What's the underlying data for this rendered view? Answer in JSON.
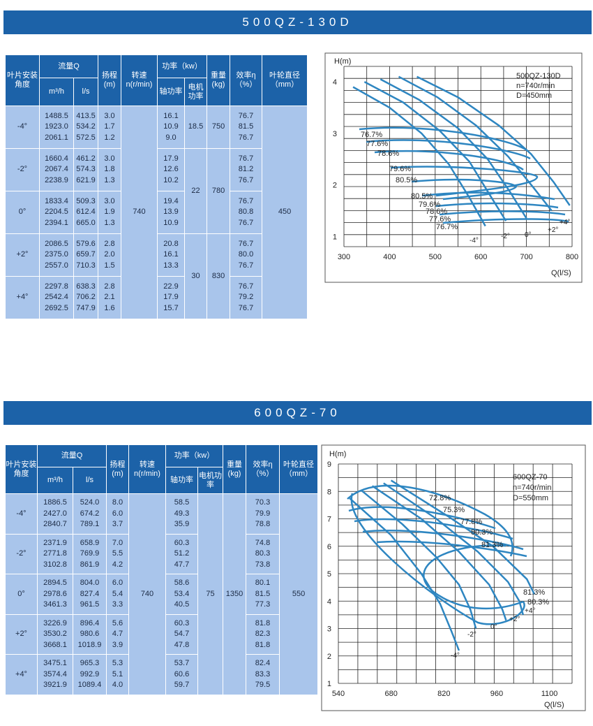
{
  "colors": {
    "banner": "#1c62a8",
    "header": "#1c62a8",
    "cell": "#a9c5eb",
    "curve": "#2e86c1"
  },
  "headers": {
    "angle": "叶片安装角度",
    "flow": "流量Q",
    "flow_m3h": "m³/h",
    "flow_ls": "l/s",
    "head": "扬程",
    "head_unit": "(m)",
    "speed": "转速",
    "speed_unit": "n(r/min)",
    "power": "功率（kw）",
    "shaft_power": "轴功率",
    "motor_power": "电机功率",
    "weight": "重量",
    "weight_unit": "(kg)",
    "eff": "效率η",
    "eff_unit": "（%）",
    "impeller": "叶轮直径",
    "impeller_unit": "（mm）"
  },
  "pumps": [
    {
      "title": "500QZ-130D",
      "speed": "740",
      "impeller": "450",
      "rows": [
        {
          "angle": "-4°",
          "m3h": "1488.5\n1923.0\n2061.1",
          "ls": "413.5\n534.2\n572.5",
          "head": "3.0\n1.7\n1.2",
          "shaft": "16.1\n10.9\n9.0",
          "eff": "76.7\n81.5\n76.7"
        },
        {
          "angle": "-2°",
          "m3h": "1660.4\n2067.4\n2238.9",
          "ls": "461.2\n574.3\n621.9",
          "head": "3.0\n1.8\n1.3",
          "shaft": "17.9\n12.6\n10.2",
          "eff": "76.7\n81.2\n76.7"
        },
        {
          "angle": "0°",
          "m3h": "1833.4\n2204.5\n2394.1",
          "ls": "509.3\n612.4\n665.0",
          "head": "3.0\n1.9\n1.3",
          "shaft": "19.4\n13.9\n10.9",
          "eff": "76.7\n80.8\n76.7"
        },
        {
          "angle": "+2°",
          "m3h": "2086.5\n2375.0\n2557.0",
          "ls": "579.6\n659.7\n710.3",
          "head": "2.8\n2.0\n1.5",
          "shaft": "20.8\n16.1\n13.3",
          "eff": "76.7\n80.0\n76.7"
        },
        {
          "angle": "+4°",
          "m3h": "2297.8\n2542.4\n2692.5",
          "ls": "638.3\n706.2\n747.9",
          "head": "2.8\n2.1\n1.6",
          "shaft": "22.9\n17.9\n15.7",
          "eff": "76.7\n79.2\n76.7"
        }
      ],
      "motor_groups": [
        {
          "motor": "18.5",
          "weight": "750"
        },
        {
          "motor": "22",
          "weight": "780"
        },
        {
          "motor": "30",
          "weight": "830"
        }
      ]
    },
    {
      "title": "600QZ-70",
      "speed": "740",
      "impeller": "550",
      "motor": "75",
      "weight": "1350",
      "rows": [
        {
          "angle": "-4°",
          "m3h": "1886.5\n2427.0\n2840.7",
          "ls": "524.0\n674.2\n789.1",
          "head": "8.0\n6.0\n3.7",
          "shaft": "58.5\n49.3\n35.9",
          "eff": "70.3\n79.9\n78.8"
        },
        {
          "angle": "-2°",
          "m3h": "2371.9\n2771.8\n3102.8",
          "ls": "658.9\n769.9\n861.9",
          "head": "7.0\n5.5\n4.2",
          "shaft": "60.3\n51.2\n47.7",
          "eff": "74.8\n80.3\n73.8"
        },
        {
          "angle": "0°",
          "m3h": "2894.5\n2978.6\n3461.3",
          "ls": "804.0\n827.4\n961.5",
          "head": "6.0\n5.4\n3.3",
          "shaft": "58.6\n53.4\n40.5",
          "eff": "80.1\n81.5\n77.3"
        },
        {
          "angle": "+2°",
          "m3h": "3226.9\n3530.2\n3668.1",
          "ls": "896.4\n980.6\n1018.9",
          "head": "5.6\n4.7\n3.9",
          "shaft": "60.3\n54.7\n47.8",
          "eff": "81.8\n82.3\n81.8"
        },
        {
          "angle": "+4°",
          "m3h": "3475.1\n3574.4\n3921.9",
          "ls": "965.3\n992.9\n1089.4",
          "head": "5.3\n5.1\n4.0",
          "shaft": "53.7\n60.6\n59.7",
          "eff": "82.4\n83.3\n79.5"
        }
      ]
    }
  ],
  "chart_data": [
    {
      "type": "line",
      "title": "500QZ-130D",
      "info": [
        "500QZ-130D",
        "n=740r/min",
        "D=450mm"
      ],
      "xlabel": "Q(l/S)",
      "ylabel": "H(m)",
      "xlim": [
        300,
        800
      ],
      "ylim": [
        0.8,
        4.3
      ],
      "xticks": [
        "300",
        "400",
        "500",
        "600",
        "700",
        "800"
      ],
      "yticks": [
        "1",
        "2",
        "3",
        "4"
      ],
      "series": [
        {
          "name": "-4°",
          "points": [
            [
              320,
              3.9
            ],
            [
              400,
              3.5
            ],
            [
              470,
              3.0
            ],
            [
              530,
              2.4
            ],
            [
              575,
              1.75
            ],
            [
              610,
              1.2
            ]
          ]
        },
        {
          "name": "-2°",
          "points": [
            [
              345,
              4.0
            ],
            [
              430,
              3.6
            ],
            [
              510,
              3.05
            ],
            [
              575,
              2.45
            ],
            [
              620,
              1.8
            ],
            [
              655,
              1.3
            ]
          ]
        },
        {
          "name": "0°",
          "points": [
            [
              380,
              4.05
            ],
            [
              465,
              3.65
            ],
            [
              550,
              3.1
            ],
            [
              615,
              2.5
            ],
            [
              665,
              1.85
            ],
            [
              700,
              1.35
            ]
          ]
        },
        {
          "name": "+2°",
          "points": [
            [
              420,
              4.1
            ],
            [
              505,
              3.7
            ],
            [
              590,
              3.15
            ],
            [
              660,
              2.55
            ],
            [
              715,
              1.95
            ],
            [
              755,
              1.5
            ]
          ]
        },
        {
          "name": "+4°",
          "points": [
            [
              460,
              4.1
            ],
            [
              550,
              3.7
            ],
            [
              640,
              3.15
            ],
            [
              710,
              2.6
            ],
            [
              760,
              2.05
            ],
            [
              795,
              1.6
            ]
          ]
        }
      ],
      "labels": [
        "76.7%",
        "77.6%",
        "78.6%",
        "79.6%",
        "80.5%",
        "80.5%",
        "79.6%",
        "78.6%",
        "77.6%",
        "76.7%",
        "-4°",
        "-2°",
        "0°",
        "+2°",
        "+4°"
      ]
    },
    {
      "type": "line",
      "title": "600QZ-70",
      "info": [
        "600QZ-70",
        "n=740r/min",
        "D=550mm"
      ],
      "xlabel": "Q(l/S)",
      "ylabel": "H(m)",
      "xlim": [
        540,
        1160
      ],
      "ylim": [
        1,
        9
      ],
      "xticks": [
        "540",
        "680",
        "820",
        "960",
        "1100"
      ],
      "yticks": [
        "1",
        "2",
        "3",
        "4",
        "5",
        "6",
        "7",
        "8",
        "9"
      ],
      "series": [
        {
          "name": "-4°",
          "points": [
            [
              570,
              7.75
            ],
            [
              680,
              6.4
            ],
            [
              760,
              5.0
            ],
            [
              810,
              3.9
            ],
            [
              840,
              2.9
            ],
            [
              860,
              2.2
            ]
          ]
        },
        {
          "name": "-2°",
          "points": [
            [
              600,
              8.05
            ],
            [
              710,
              6.8
            ],
            [
              800,
              5.6
            ],
            [
              860,
              4.6
            ],
            [
              890,
              3.7
            ],
            [
              905,
              3.0
            ]
          ]
        },
        {
          "name": "0°",
          "points": [
            [
              630,
              8.2
            ],
            [
              760,
              7.0
            ],
            [
              860,
              5.8
            ],
            [
              940,
              4.6
            ],
            [
              975,
              3.7
            ],
            [
              985,
              3.3
            ]
          ]
        },
        {
          "name": "+2°",
          "points": [
            [
              660,
              8.3
            ],
            [
              800,
              7.0
            ],
            [
              910,
              5.8
            ],
            [
              990,
              4.7
            ],
            [
              1020,
              4.0
            ],
            [
              1030,
              3.5
            ]
          ]
        },
        {
          "name": "+4°",
          "points": [
            [
              680,
              8.4
            ],
            [
              830,
              7.1
            ],
            [
              950,
              6.0
            ],
            [
              1040,
              4.8
            ],
            [
              1060,
              4.25
            ]
          ]
        }
      ],
      "labels": [
        "72.8%",
        "75.3%",
        "77.8%",
        "80.3%",
        "81.3%",
        "81.3%",
        "80.3%",
        "-4°",
        "-2°",
        "0°",
        "+2°",
        "+4°"
      ]
    }
  ]
}
